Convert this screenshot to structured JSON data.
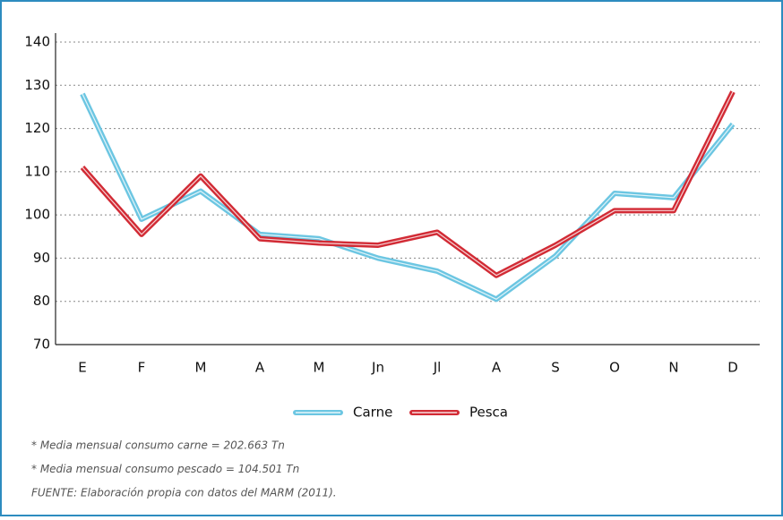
{
  "chart_data": {
    "type": "line",
    "categories": [
      "E",
      "F",
      "M",
      "A",
      "M",
      "Jn",
      "Jl",
      "A",
      "S",
      "O",
      "N",
      "D"
    ],
    "series": [
      {
        "name": "Carne",
        "color": "#6cc6e2",
        "values": [
          128,
          99,
          105.5,
          95.5,
          94.5,
          90,
          87,
          80.5,
          90.5,
          105,
          104,
          121
        ]
      },
      {
        "name": "Pesca",
        "color": "#d22b35",
        "values": [
          111,
          95.5,
          109,
          94.5,
          93.5,
          93,
          96,
          86,
          93,
          101,
          101,
          128.5
        ]
      }
    ],
    "ylim": [
      70,
      140
    ],
    "yticks": [
      70,
      80,
      90,
      100,
      110,
      120,
      130,
      140
    ],
    "grid": true,
    "legend": "bottom",
    "notes": [
      "* Media mensual consumo carne = 202.663 Tn",
      "* Media mensual consumo pescado = 104.501 Tn",
      "FUENTE: Elaboración propia con datos del MARM (2011)."
    ]
  }
}
